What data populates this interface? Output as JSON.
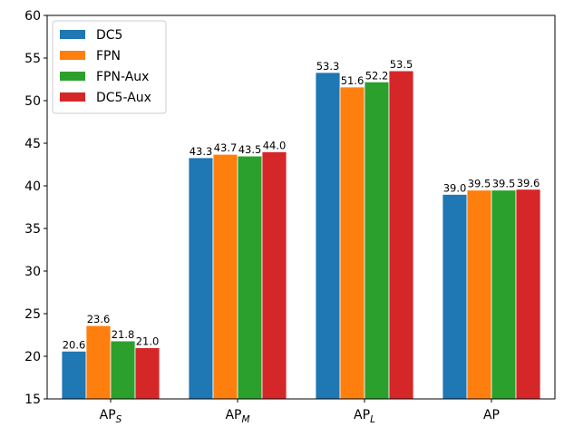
{
  "chart_data": {
    "type": "bar",
    "categories": [
      {
        "main": "AP",
        "sub": "S"
      },
      {
        "main": "AP",
        "sub": "M"
      },
      {
        "main": "AP",
        "sub": "L"
      },
      {
        "main": "AP",
        "sub": ""
      }
    ],
    "series": [
      {
        "name": "DC5",
        "color": "#1f77b4",
        "values": [
          20.6,
          43.3,
          53.3,
          39.0
        ],
        "labels": [
          "20.6",
          "43.3",
          "53.3",
          "39.0"
        ]
      },
      {
        "name": "FPN",
        "color": "#ff7f0e",
        "values": [
          23.6,
          43.7,
          51.6,
          39.5
        ],
        "labels": [
          "23.6",
          "43.7",
          "51.6",
          "39.5"
        ]
      },
      {
        "name": "FPN-Aux",
        "color": "#2ca02c",
        "values": [
          21.8,
          43.5,
          52.2,
          39.5
        ],
        "labels": [
          "21.8",
          "43.5",
          "52.2",
          "39.5"
        ]
      },
      {
        "name": "DC5-Aux",
        "color": "#d62728",
        "values": [
          21.0,
          44.0,
          53.5,
          39.6
        ],
        "labels": [
          "21.0",
          "44.0",
          "53.5",
          "39.6"
        ]
      }
    ],
    "ylim": [
      15,
      60
    ],
    "yticks": [
      "15",
      "20",
      "25",
      "30",
      "35",
      "40",
      "45",
      "50",
      "55",
      "60"
    ],
    "title": "",
    "xlabel": "",
    "ylabel": "",
    "legend_position": "top-left",
    "grid": false
  }
}
